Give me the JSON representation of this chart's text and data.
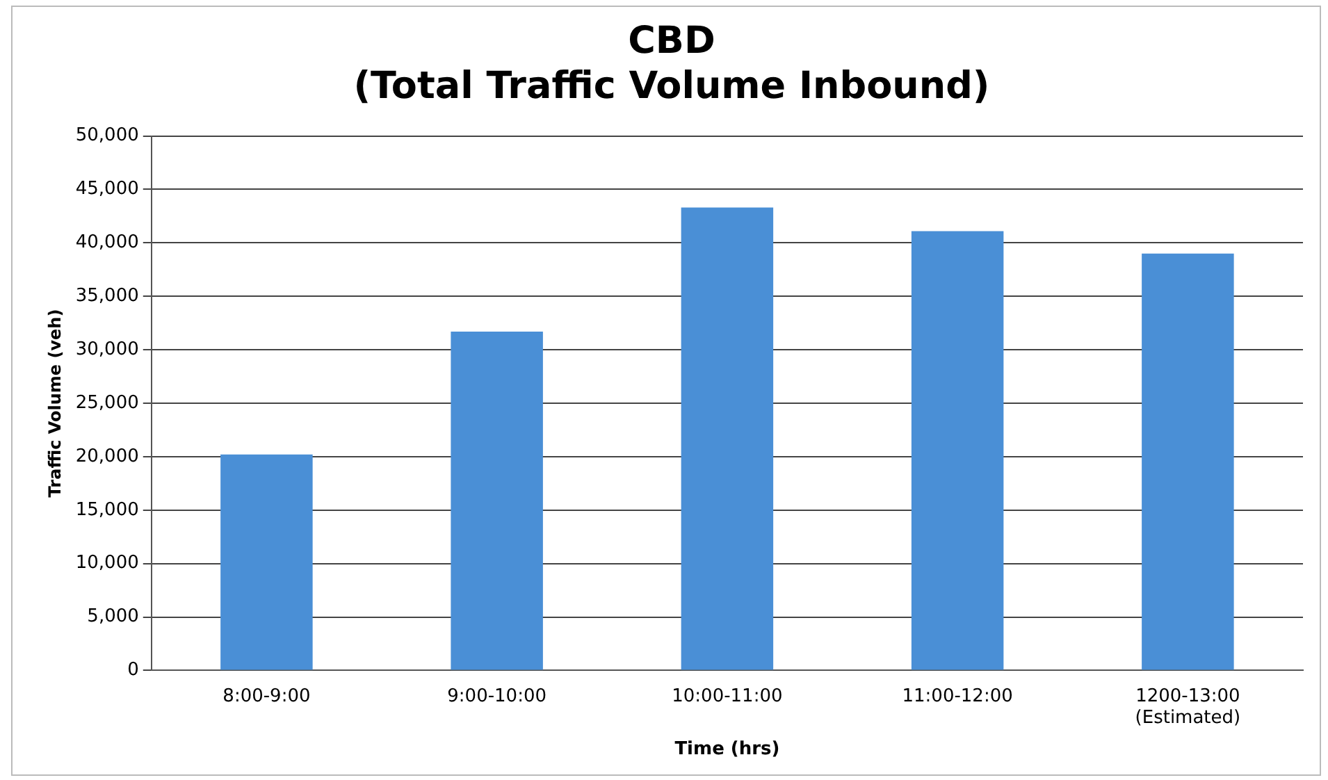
{
  "chart_data": {
    "type": "bar",
    "title": "CBD\n(Total Traffic Volume Inbound)",
    "xlabel": "Time (hrs)",
    "ylabel": "Traffic Volume (veh)",
    "categories": [
      "8:00-9:00",
      "9:00-10:00",
      "10:00-11:00",
      "11:00-12:00",
      "1200-13:00\n(Estimated)"
    ],
    "values": [
      20200,
      31700,
      43300,
      41100,
      39000
    ],
    "color": "#4a8fd6",
    "ylim": [
      0,
      50000
    ],
    "yticks": [
      0,
      {
        "value": 5000,
        "label": "5,000"
      },
      {
        "value": 10000,
        "label": "10,000"
      },
      {
        "value": 15000,
        "label": "15,000"
      },
      {
        "value": 20000,
        "label": "20,000"
      },
      {
        "value": 25000,
        "label": "25,000"
      },
      {
        "value": 30000,
        "label": "30,000"
      },
      {
        "value": 35000,
        "label": "35,000"
      },
      {
        "value": 40000,
        "label": "40,000"
      },
      {
        "value": 45000,
        "label": "45,000"
      },
      {
        "value": 50000,
        "label": "50,000"
      }
    ],
    "grid": "y",
    "legend": false
  }
}
